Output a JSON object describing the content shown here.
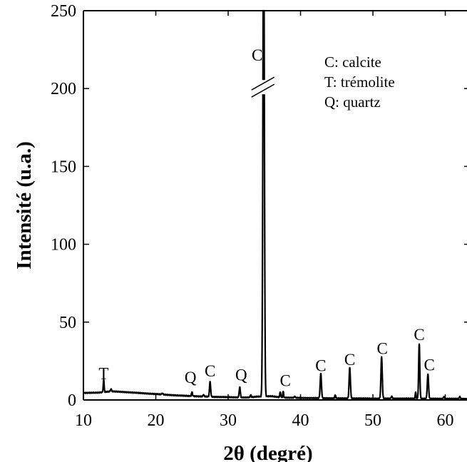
{
  "chart_data": {
    "type": "line",
    "title": "",
    "xlabel": "2θ (degré)",
    "ylabel": "Intensité (u.a.)",
    "xlim": [
      10,
      63
    ],
    "ylim": [
      0,
      250
    ],
    "xticks": [
      10,
      20,
      30,
      40,
      50,
      60
    ],
    "yticks": [
      0,
      50,
      100,
      150,
      200,
      250
    ],
    "grid": false,
    "axis_break": {
      "x": 34.8,
      "y": 200
    },
    "legend": {
      "placement": "top-right",
      "entries": [
        "C: calcite",
        "T: trémolite",
        "Q: quartz"
      ]
    },
    "series": [
      {
        "color": "#000000",
        "background": [
          [
            10,
            4.5
          ],
          [
            11,
            4.6
          ],
          [
            12,
            4.7
          ],
          [
            13,
            5.2
          ],
          [
            14,
            5.5
          ],
          [
            15,
            5.3
          ],
          [
            16,
            5.0
          ],
          [
            17,
            4.7
          ],
          [
            18,
            4.4
          ],
          [
            19,
            4.1
          ],
          [
            20,
            3.8
          ],
          [
            21,
            3.5
          ],
          [
            22,
            3.2
          ],
          [
            23,
            2.9
          ],
          [
            24,
            2.7
          ],
          [
            25,
            2.5
          ],
          [
            26,
            2.3
          ],
          [
            27,
            2.2
          ],
          [
            28,
            2.0
          ],
          [
            29,
            1.9
          ],
          [
            30,
            1.8
          ],
          [
            31,
            1.7
          ],
          [
            32,
            1.6
          ],
          [
            33,
            1.6
          ],
          [
            34,
            2.2
          ],
          [
            36,
            2.4
          ],
          [
            37,
            1.8
          ],
          [
            38,
            1.5
          ],
          [
            40,
            1.3
          ],
          [
            42,
            1.2
          ],
          [
            44,
            1.1
          ],
          [
            46,
            1.0
          ],
          [
            48,
            1.0
          ],
          [
            50,
            0.9
          ],
          [
            52,
            0.9
          ],
          [
            54,
            0.9
          ],
          [
            56,
            0.9
          ],
          [
            58,
            0.8
          ],
          [
            60,
            0.8
          ],
          [
            63,
            0.7
          ]
        ],
        "peaks": [
          {
            "x": 12.8,
            "height": 8,
            "width": 0.06
          },
          {
            "x": 13.8,
            "height": 1.5,
            "width": 0.08
          },
          {
            "x": 20.9,
            "height": 0.8,
            "width": 0.08
          },
          {
            "x": 25.0,
            "height": 2.5,
            "width": 0.07
          },
          {
            "x": 26.6,
            "height": 1.2,
            "width": 0.07
          },
          {
            "x": 27.5,
            "height": 9.5,
            "width": 0.08
          },
          {
            "x": 31.6,
            "height": 6.5,
            "width": 0.08
          },
          {
            "x": 33.1,
            "height": 1.5,
            "width": 0.07
          },
          {
            "x": 34.9,
            "height": 320,
            "width": 0.1
          },
          {
            "x": 37.2,
            "height": 3.5,
            "width": 0.06
          },
          {
            "x": 37.6,
            "height": 3.8,
            "width": 0.06
          },
          {
            "x": 39.2,
            "height": 1.0,
            "width": 0.07
          },
          {
            "x": 42.8,
            "height": 15.5,
            "width": 0.09
          },
          {
            "x": 44.8,
            "height": 2.0,
            "width": 0.07
          },
          {
            "x": 46.8,
            "height": 19.5,
            "width": 0.09
          },
          {
            "x": 51.2,
            "height": 26.5,
            "width": 0.09
          },
          {
            "x": 52.6,
            "height": 1.5,
            "width": 0.07
          },
          {
            "x": 55.9,
            "height": 4.0,
            "width": 0.06
          },
          {
            "x": 56.4,
            "height": 35.0,
            "width": 0.08
          },
          {
            "x": 57.6,
            "height": 15.5,
            "width": 0.09
          },
          {
            "x": 59.8,
            "height": 1.2,
            "width": 0.07
          },
          {
            "x": 62.0,
            "height": 1.5,
            "width": 0.07
          }
        ]
      }
    ],
    "annotations": [
      {
        "text": "T",
        "x": 12.8,
        "y": 13.5
      },
      {
        "text": "Q",
        "x": 24.8,
        "y": 11
      },
      {
        "text": "C",
        "x": 27.5,
        "y": 15
      },
      {
        "text": "Q",
        "x": 31.8,
        "y": 12.5
      },
      {
        "text": "C",
        "x": 34.0,
        "y": 218
      },
      {
        "text": "C",
        "x": 37.9,
        "y": 9
      },
      {
        "text": "C",
        "x": 42.8,
        "y": 18.5
      },
      {
        "text": "C",
        "x": 46.8,
        "y": 22.5
      },
      {
        "text": "C",
        "x": 51.3,
        "y": 29.5
      },
      {
        "text": "C",
        "x": 56.4,
        "y": 38.5
      },
      {
        "text": "C",
        "x": 57.8,
        "y": 19
      }
    ]
  }
}
